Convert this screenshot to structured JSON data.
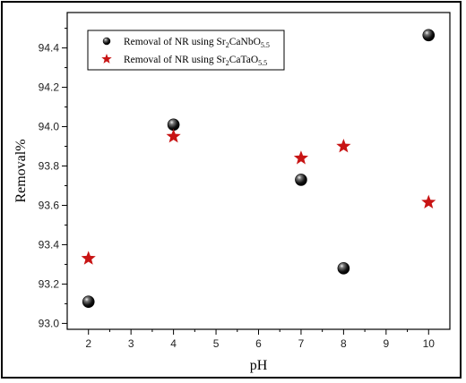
{
  "chart_data": {
    "type": "scatter",
    "title": "",
    "xlabel": "pH",
    "ylabel": "Removal%",
    "xlim": [
      1.5,
      10.5
    ],
    "ylim": [
      92.97,
      94.58
    ],
    "x_ticks": [
      2,
      3,
      4,
      5,
      6,
      7,
      8,
      9,
      10
    ],
    "y_ticks": [
      93.0,
      93.2,
      93.4,
      93.6,
      93.8,
      94.0,
      94.2,
      94.4
    ],
    "y_tick_labels": [
      "93.0",
      "93.2",
      "93.4",
      "93.6",
      "93.8",
      "94.0",
      "94.2",
      "94.4"
    ],
    "grid": false,
    "legend_position": "top-left",
    "series": [
      {
        "name": "Removal of NR using Sr2CaNbO5.5",
        "legend": {
          "prefix": "Removal of NR using Sr",
          "s1": "2",
          "mid": "CaNbO",
          "s2": "5.5"
        },
        "marker": "sphere",
        "color": "#000000",
        "x": [
          2,
          4,
          7,
          8,
          10
        ],
        "y": [
          93.11,
          94.01,
          93.73,
          93.28,
          94.465
        ]
      },
      {
        "name": "Removal of NR using Sr2CaTaO5.5",
        "legend": {
          "prefix": "Removal of NR using Sr",
          "s1": "2",
          "mid": "CaTaO",
          "s2": "5.5"
        },
        "marker": "star",
        "color": "#c81414",
        "x": [
          2,
          4,
          7,
          8,
          10
        ],
        "y": [
          93.33,
          93.95,
          93.84,
          93.9,
          93.615
        ]
      }
    ]
  }
}
